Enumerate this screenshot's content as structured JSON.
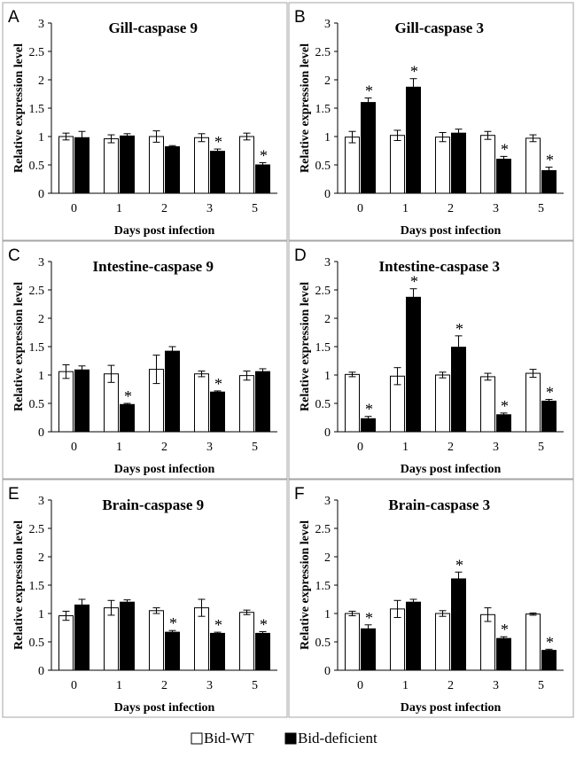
{
  "chart_data": [
    {
      "panel": "A",
      "type": "bar",
      "title": "Gill-caspase 9",
      "ylabel": "Relative expression level",
      "xlabel": "Days post infection",
      "categories": [
        "0",
        "1",
        "2",
        "3",
        "5"
      ],
      "ylim": [
        0,
        3
      ],
      "yticks": [
        "0",
        "0.5",
        "1",
        "1.5",
        "2",
        "2.5",
        "3"
      ],
      "series": [
        {
          "name": "Bid-WT",
          "values": [
            1.0,
            0.96,
            1.0,
            0.98,
            1.0
          ],
          "errors": [
            0.06,
            0.07,
            0.1,
            0.07,
            0.06
          ],
          "significant": [
            false,
            false,
            false,
            false,
            false
          ]
        },
        {
          "name": "Bid-deficient",
          "values": [
            0.98,
            1.01,
            0.82,
            0.74,
            0.5
          ],
          "errors": [
            0.11,
            0.04,
            0.02,
            0.04,
            0.04
          ],
          "significant": [
            false,
            false,
            false,
            true,
            true
          ]
        }
      ]
    },
    {
      "panel": "B",
      "type": "bar",
      "title": "Gill-caspase 3",
      "ylabel": "Relative expression level",
      "xlabel": "Days post infection",
      "categories": [
        "0",
        "1",
        "2",
        "3",
        "5"
      ],
      "ylim": [
        0,
        3
      ],
      "yticks": [
        "0",
        "0.5",
        "1",
        "1.5",
        "2",
        "2.5",
        "3"
      ],
      "series": [
        {
          "name": "Bid-WT",
          "values": [
            0.99,
            1.02,
            0.99,
            1.02,
            0.97
          ],
          "errors": [
            0.1,
            0.09,
            0.08,
            0.07,
            0.06
          ],
          "significant": [
            false,
            false,
            false,
            false,
            false
          ]
        },
        {
          "name": "Bid-deficient",
          "values": [
            1.6,
            1.87,
            1.06,
            0.6,
            0.4
          ],
          "errors": [
            0.08,
            0.15,
            0.07,
            0.05,
            0.06
          ],
          "significant": [
            true,
            true,
            false,
            true,
            true
          ]
        }
      ]
    },
    {
      "panel": "C",
      "type": "bar",
      "title": "Intestine-caspase 9",
      "ylabel": "Relative expression level",
      "xlabel": "Days post infection",
      "categories": [
        "0",
        "1",
        "2",
        "3",
        "5"
      ],
      "ylim": [
        0,
        3
      ],
      "yticks": [
        "0",
        "0.5",
        "1",
        "1.5",
        "2",
        "2.5",
        "3"
      ],
      "series": [
        {
          "name": "Bid-WT",
          "values": [
            1.06,
            1.02,
            1.1,
            1.02,
            0.99
          ],
          "errors": [
            0.12,
            0.15,
            0.25,
            0.05,
            0.08
          ],
          "significant": [
            false,
            false,
            false,
            false,
            false
          ]
        },
        {
          "name": "Bid-deficient",
          "values": [
            1.09,
            0.48,
            1.42,
            0.7,
            1.06
          ],
          "errors": [
            0.07,
            0.02,
            0.08,
            0.02,
            0.05
          ],
          "significant": [
            false,
            true,
            false,
            true,
            false
          ]
        }
      ]
    },
    {
      "panel": "D",
      "type": "bar",
      "title": "Intestine-caspase 3",
      "ylabel": "Relative expression level",
      "xlabel": "Days post infection",
      "categories": [
        "0",
        "1",
        "2",
        "3",
        "5"
      ],
      "ylim": [
        0,
        3
      ],
      "yticks": [
        "0",
        "0.5",
        "1",
        "1.5",
        "2",
        "2.5",
        "3"
      ],
      "series": [
        {
          "name": "Bid-WT",
          "values": [
            1.01,
            0.98,
            1.0,
            0.97,
            1.03
          ],
          "errors": [
            0.04,
            0.15,
            0.05,
            0.06,
            0.07
          ],
          "significant": [
            false,
            false,
            false,
            false,
            false
          ]
        },
        {
          "name": "Bid-deficient",
          "values": [
            0.23,
            2.37,
            1.49,
            0.3,
            0.54
          ],
          "errors": [
            0.04,
            0.15,
            0.2,
            0.03,
            0.03
          ],
          "significant": [
            true,
            true,
            true,
            true,
            true
          ]
        }
      ]
    },
    {
      "panel": "E",
      "type": "bar",
      "title": "Brain-caspase 9",
      "ylabel": "Relative expression level",
      "xlabel": "Days post infection",
      "categories": [
        "0",
        "1",
        "2",
        "3",
        "5"
      ],
      "ylim": [
        0,
        3
      ],
      "yticks": [
        "0",
        "0.5",
        "1",
        "1.5",
        "2",
        "2.5",
        "3"
      ],
      "series": [
        {
          "name": "Bid-WT",
          "values": [
            0.96,
            1.1,
            1.05,
            1.1,
            1.02
          ],
          "errors": [
            0.08,
            0.13,
            0.05,
            0.15,
            0.04
          ],
          "significant": [
            false,
            false,
            false,
            false,
            false
          ]
        },
        {
          "name": "Bid-deficient",
          "values": [
            1.15,
            1.2,
            0.67,
            0.65,
            0.65
          ],
          "errors": [
            0.1,
            0.04,
            0.03,
            0.02,
            0.03
          ],
          "significant": [
            false,
            false,
            true,
            true,
            true
          ]
        }
      ]
    },
    {
      "panel": "F",
      "type": "bar",
      "title": "Brain-caspase 3",
      "ylabel": "Relative expression level",
      "xlabel": "Days post infection",
      "categories": [
        "0",
        "1",
        "2",
        "3",
        "5"
      ],
      "ylim": [
        0,
        3
      ],
      "yticks": [
        "0",
        "0.5",
        "1",
        "1.5",
        "2",
        "2.5",
        "3"
      ],
      "series": [
        {
          "name": "Bid-WT",
          "values": [
            1.0,
            1.08,
            1.0,
            0.98,
            0.99
          ],
          "errors": [
            0.04,
            0.15,
            0.05,
            0.12,
            0.02
          ],
          "significant": [
            false,
            false,
            false,
            false,
            false
          ]
        },
        {
          "name": "Bid-deficient",
          "values": [
            0.73,
            1.2,
            1.61,
            0.56,
            0.35
          ],
          "errors": [
            0.07,
            0.05,
            0.12,
            0.03,
            0.02
          ],
          "significant": [
            true,
            false,
            true,
            true,
            true
          ]
        }
      ]
    }
  ],
  "legend": {
    "items": [
      "Bid-WT",
      "Bid-deficient"
    ]
  },
  "significance_marker": "*",
  "colors": {
    "wt_fill": "#ffffff",
    "deficient_fill": "#000000",
    "frame": "#a6a6a6"
  }
}
